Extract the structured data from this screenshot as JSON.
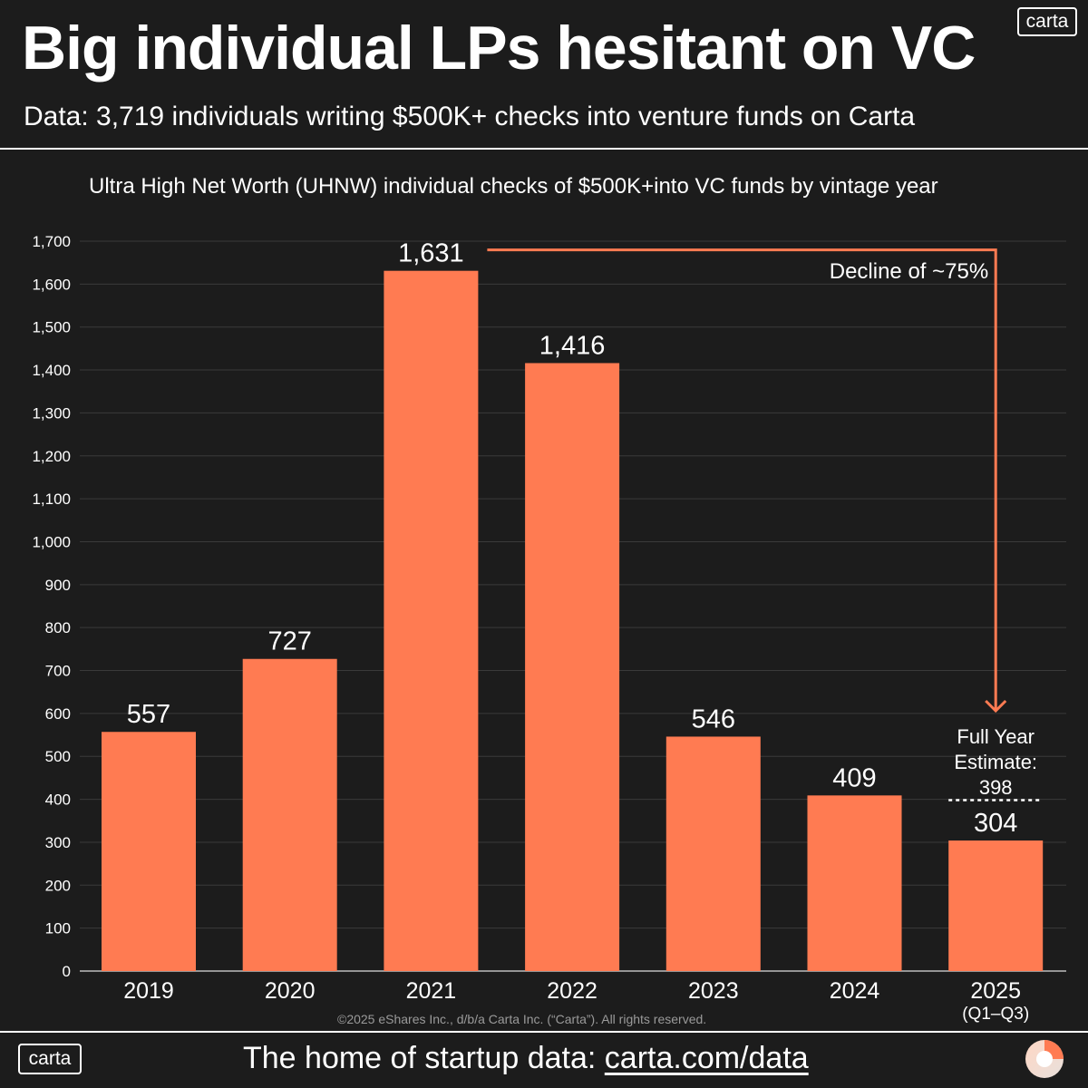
{
  "header": {
    "title": "Big individual LPs hesitant on VC",
    "subtitle": "Data: 3,719 individuals writing $500K+ checks into venture funds on Carta",
    "logo": "carta"
  },
  "footer": {
    "prefix": "The home of startup data: ",
    "link": "carta.com/data",
    "logo": "carta",
    "copyright": "©2025 eShares Inc., d/b/a Carta Inc. (“Carta”). All rights reserved.",
    "brand_icon": "carta-circle-icon"
  },
  "colors": {
    "background": "#1c1c1c",
    "bar": "#ff7b52",
    "text": "#ffffff",
    "grid": "#3a3a3a"
  },
  "chart_data": {
    "type": "bar",
    "title": "Ultra High Net Worth (UHNW) individual checks of $500K+into VC funds by vintage year",
    "categories": [
      "2019",
      "2020",
      "2021",
      "2022",
      "2023",
      "2024",
      "2025"
    ],
    "category_sublabels": [
      "",
      "",
      "",
      "",
      "",
      "",
      "(Q1–Q3)"
    ],
    "values": [
      557,
      727,
      1631,
      1416,
      546,
      409,
      304
    ],
    "value_labels": [
      "557",
      "727",
      "1,631",
      "1,416",
      "546",
      "409",
      "304"
    ],
    "ylim": [
      0,
      1700
    ],
    "yticks": [
      0,
      100,
      200,
      300,
      400,
      500,
      600,
      700,
      800,
      900,
      1000,
      1100,
      1200,
      1300,
      1400,
      1500,
      1600,
      1700
    ],
    "ytick_labels": [
      "0",
      "100",
      "200",
      "300",
      "400",
      "500",
      "600",
      "700",
      "800",
      "900",
      "1,000",
      "1,100",
      "1,200",
      "1,300",
      "1,400",
      "1,500",
      "1,600",
      "1,700"
    ],
    "grid": true,
    "annotations": {
      "decline_label": "Decline of ~75%",
      "estimate_label_lines": [
        "Full Year",
        "Estimate:",
        "398"
      ],
      "estimate_value": 398
    }
  }
}
